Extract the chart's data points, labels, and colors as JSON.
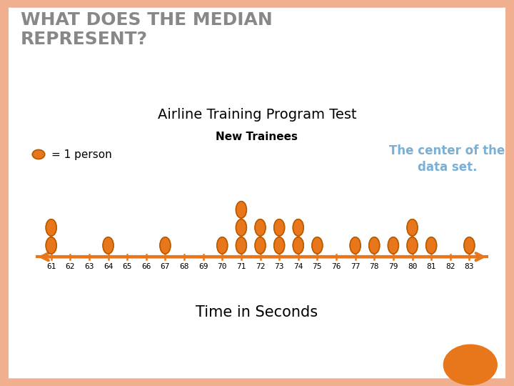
{
  "title_main": "WHAT DOES THE MEDIAN\nREPRESENT?",
  "title_chart": "Airline Training Program Test",
  "subtitle_chart": "New Trainees",
  "xlabel": "Time in Seconds",
  "legend_label": "= 1 person",
  "annotation": "The center of the\ndata set.",
  "dot_color": "#E8761A",
  "bg_color": "#FFFFFF",
  "border_color": "#F0B090",
  "axis_color": "#E8761A",
  "title_color": "#888888",
  "annotation_color": "#7BAFD4",
  "xlabel_color": "#000000",
  "data": {
    "61": 2,
    "62": 0,
    "63": 0,
    "64": 1,
    "65": 0,
    "66": 0,
    "67": 1,
    "68": 0,
    "69": 0,
    "70": 1,
    "71": 3,
    "72": 2,
    "73": 2,
    "74": 2,
    "75": 1,
    "76": 0,
    "77": 1,
    "78": 1,
    "79": 1,
    "80": 2,
    "81": 1,
    "82": 0,
    "83": 1
  },
  "xmin": 60.2,
  "xmax": 84.0,
  "title_fontsize": 18,
  "chart_title_fontsize": 14,
  "subtitle_fontsize": 11,
  "legend_fontsize": 11,
  "annotation_fontsize": 12,
  "tick_fontsize": 8,
  "xlabel_fontsize": 15
}
